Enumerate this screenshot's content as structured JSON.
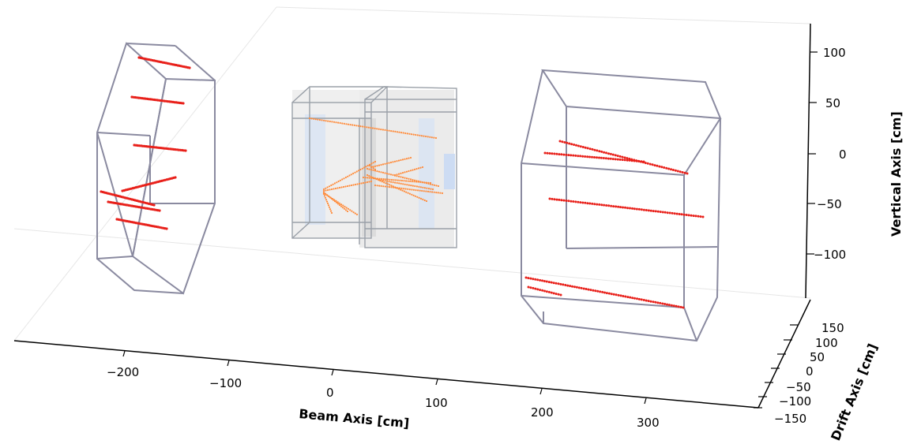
{
  "chart_data": {
    "type": "scatter",
    "projection": "3d",
    "title": "",
    "axes": {
      "beam": {
        "label": "Beam Axis [cm]",
        "ticks": [
          "−200",
          "−100",
          "0",
          "100",
          "200",
          "300"
        ]
      },
      "vertical": {
        "label": "Vertical Axis [cm]",
        "ticks": [
          "100",
          "50",
          "0",
          "−50",
          "−100"
        ]
      },
      "drift": {
        "label": "Drift Axis [cm]",
        "ticks": [
          "150",
          "100",
          "50",
          "0",
          "−50",
          "−100",
          "−150"
        ]
      }
    },
    "detectors": [
      {
        "id": "upstream-muon-module",
        "outline_color": "#8a8aa0"
      },
      {
        "id": "central-tpc",
        "outline_color": "#9aa0a8",
        "fill_color": "#d8d8d8",
        "readout_color": "#a9c4f0"
      },
      {
        "id": "downstream-muon-module",
        "outline_color": "#8a8aa0"
      }
    ],
    "series": [
      {
        "kind": "hits",
        "color": "#e8201a",
        "region": "upstream"
      },
      {
        "kind": "hits",
        "color": "#ff8c3c",
        "region": "tpc"
      },
      {
        "kind": "hits",
        "color": "#e8201a",
        "region": "downstream"
      }
    ],
    "grid": false
  }
}
